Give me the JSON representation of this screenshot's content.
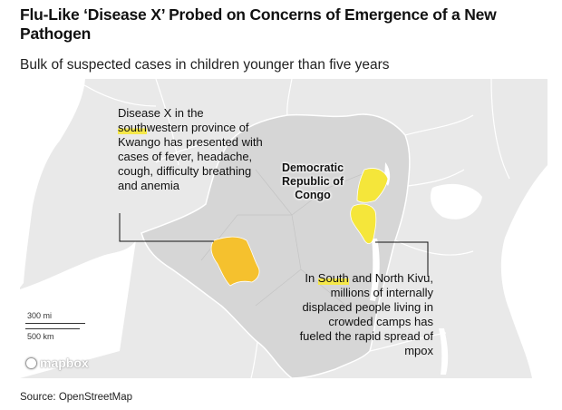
{
  "header": {
    "title": "Flu-Like ‘Disease X’ Probed on Concerns of Emergence of a New Pathogen",
    "subtitle": "Bulk of suspected cases in children younger than five years"
  },
  "map": {
    "country_label": [
      "Democratic",
      "Republic of",
      "Congo"
    ],
    "annotation_left": {
      "pre": "Disease X in the ",
      "highlight": "south",
      "post": "western province of Kwango has presented with cases of fever, headache, cough, difficulty breathing and anemia"
    },
    "annotation_right": {
      "pre": "In ",
      "highlight": "South",
      "post": " and North Kivu, millions of internally displaced people living in crowded camps has fueled the rapid spread of mpox"
    },
    "highlighted_regions": [
      {
        "name": "Kwango",
        "color": "#f5c12e"
      },
      {
        "name": "North Kivu",
        "color": "#f5e63a"
      },
      {
        "name": "South Kivu",
        "color": "#f5e63a"
      }
    ],
    "scale": {
      "miles": "300 mi",
      "km": "500 km"
    },
    "logo": "mapbox",
    "colors": {
      "land": "#e9e9e9",
      "water": "#ffffff",
      "focus_country": "#d6d6d6",
      "borders": "#ffffff"
    }
  },
  "footer": {
    "source": "Source: OpenStreetMap"
  }
}
